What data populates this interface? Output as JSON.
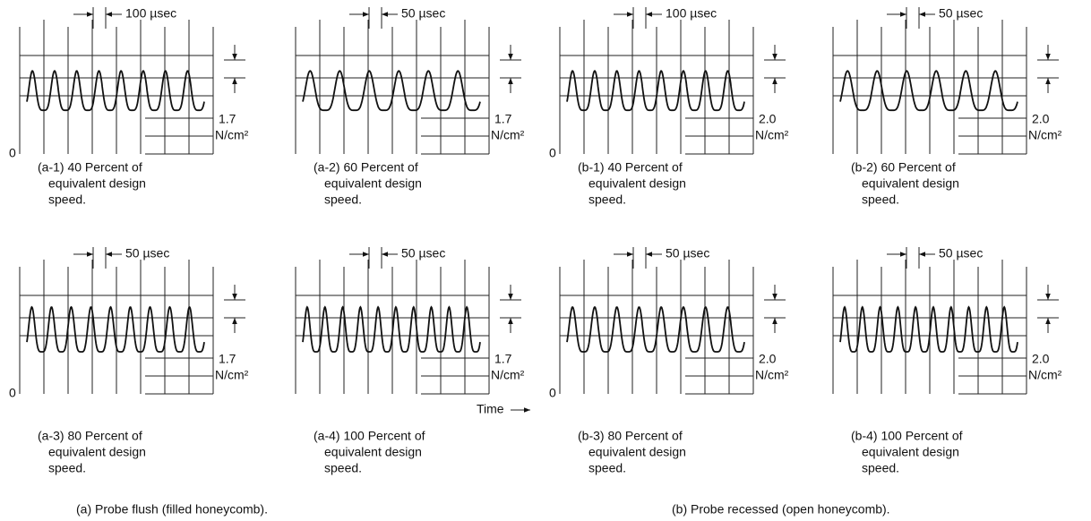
{
  "panels": [
    {
      "id": "a-1",
      "time_scale": "100 µsec",
      "pressure_scale": "1.7",
      "pressure_unit": "N/cm²",
      "zero": "0",
      "caption": [
        "(a-1) 40 Percent of",
        "equivalent design",
        "speed."
      ]
    },
    {
      "id": "a-2",
      "time_scale": "50 µsec",
      "pressure_scale": "1.7",
      "pressure_unit": "N/cm²",
      "caption": [
        "(a-2) 60 Percent of",
        "equivalent design",
        "speed."
      ]
    },
    {
      "id": "b-1",
      "time_scale": "100 µsec",
      "pressure_scale": "2.0",
      "pressure_unit": "N/cm²",
      "zero": "0",
      "caption": [
        "(b-1) 40 Percent of",
        "equivalent design",
        "speed."
      ]
    },
    {
      "id": "b-2",
      "time_scale": "50 µsec",
      "pressure_scale": "2.0",
      "pressure_unit": "N/cm²",
      "caption": [
        "(b-2) 60 Percent of",
        "equivalent design",
        "speed."
      ]
    },
    {
      "id": "a-3",
      "time_scale": "50 µsec",
      "pressure_scale": "1.7",
      "pressure_unit": "N/cm²",
      "zero": "0",
      "caption": [
        "(a-3) 80 Percent of",
        "equivalent design",
        "speed."
      ]
    },
    {
      "id": "a-4",
      "time_scale": "50 µsec",
      "pressure_scale": "1.7",
      "pressure_unit": "N/cm²",
      "caption": [
        "(a-4) 100 Percent of",
        "equivalent design",
        "speed."
      ]
    },
    {
      "id": "b-3",
      "time_scale": "50 µsec",
      "pressure_scale": "2.0",
      "pressure_unit": "N/cm²",
      "zero": "0",
      "caption": [
        "(b-3) 80 Percent of",
        "equivalent design",
        "speed."
      ]
    },
    {
      "id": "b-4",
      "time_scale": "50 µsec",
      "pressure_scale": "2.0",
      "pressure_unit": "N/cm²",
      "caption": [
        "(b-4) 100 Percent of",
        "equivalent design",
        "speed."
      ]
    }
  ],
  "time_axis": "Time",
  "groups": [
    "(a) Probe flush (filled honeycomb).",
    "(b) Probe recessed (open honeycomb)."
  ]
}
